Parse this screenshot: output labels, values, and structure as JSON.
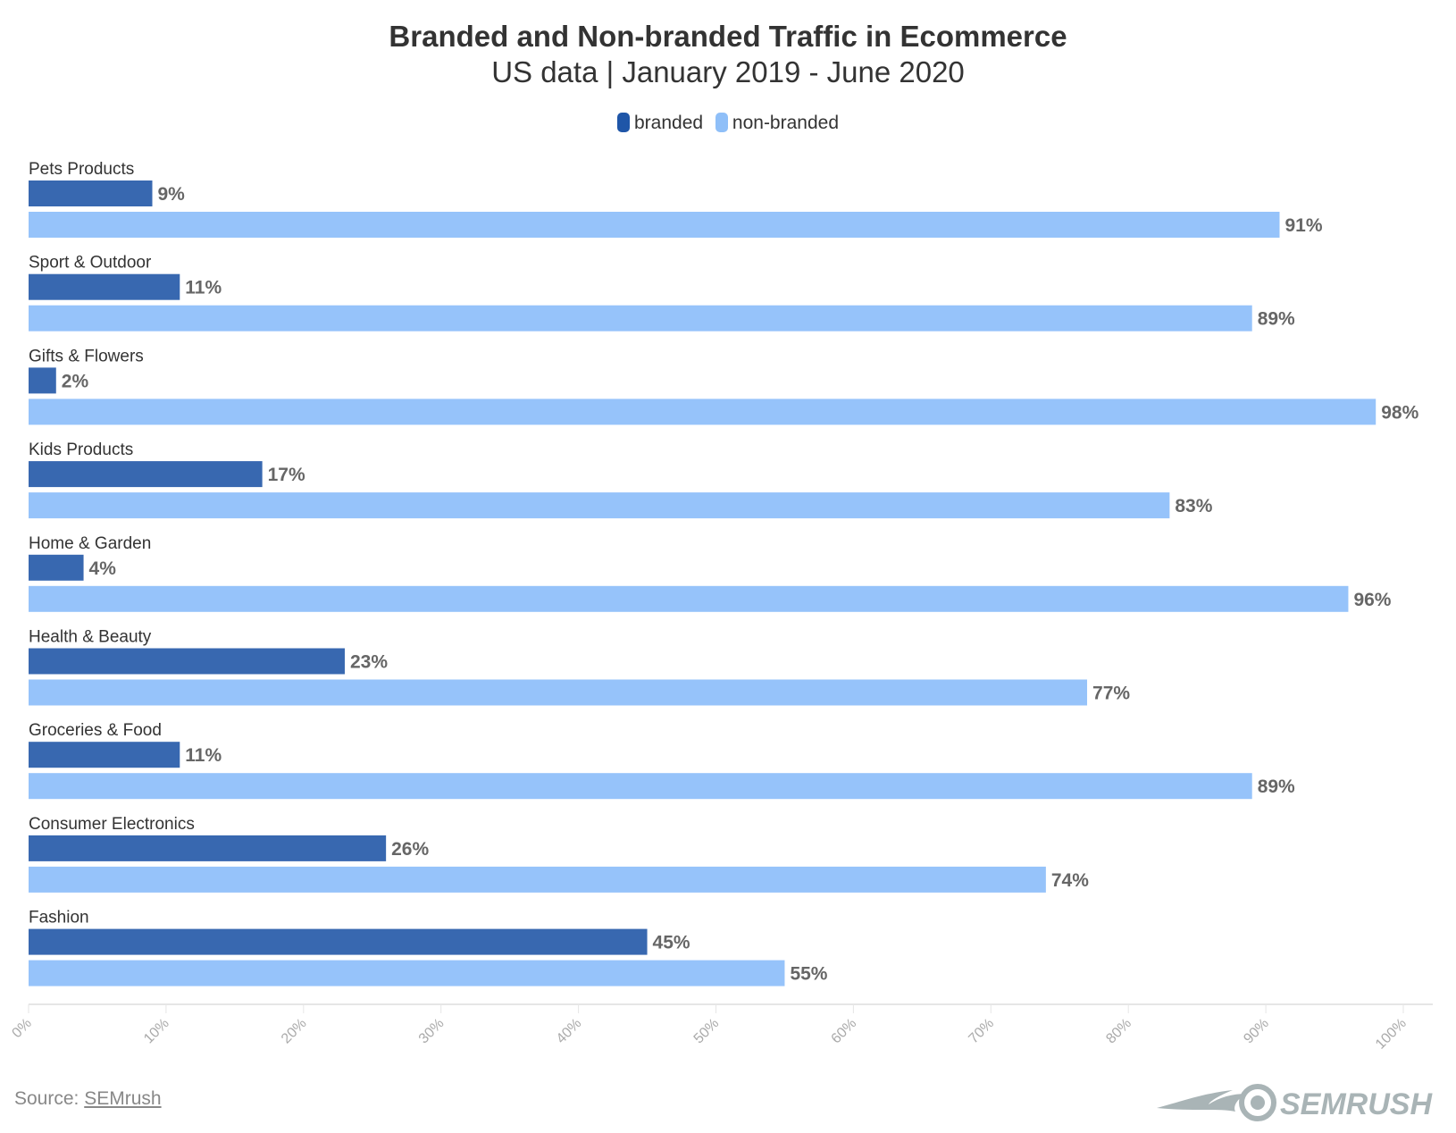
{
  "chart_data": {
    "type": "bar",
    "orientation": "horizontal",
    "title": "Branded and Non-branded Traffic in Ecommerce",
    "subtitle": "US data | January 2019 - June 2020",
    "categories": [
      "Pets Products",
      "Sport & Outdoor",
      "Gifts & Flowers",
      "Kids Products",
      "Home & Garden",
      "Health & Beauty",
      "Groceries & Food",
      "Consumer Electronics",
      "Fashion"
    ],
    "series": [
      {
        "name": "branded",
        "color": "#3868b0",
        "legend_color": "#1f56a8",
        "values": [
          9,
          11,
          2,
          17,
          4,
          23,
          11,
          26,
          45
        ]
      },
      {
        "name": "non-branded",
        "color": "#96c3fa",
        "legend_color": "#8fbff8",
        "values": [
          91,
          89,
          98,
          83,
          96,
          77,
          89,
          74,
          55
        ]
      }
    ],
    "value_suffix": "%",
    "xlim": [
      0,
      100
    ],
    "x_ticks": [
      "0%",
      "10%",
      "20%",
      "30%",
      "40%",
      "50%",
      "60%",
      "70%",
      "80%",
      "90%",
      "100%"
    ],
    "legend_position": "top-center",
    "grid": false
  },
  "footer": {
    "source_label": "Source:",
    "source_link": "SEMrush",
    "logo_text": "SEMRUSH"
  }
}
